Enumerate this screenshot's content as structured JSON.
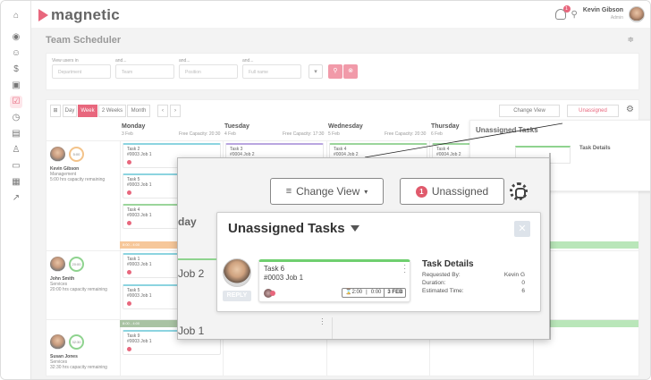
{
  "app": {
    "logo_text": "magnetic",
    "brand_color": "#e8677d"
  },
  "user": {
    "name": "Kevin Gibson",
    "role": "Admin",
    "notifications": "1"
  },
  "rail_icons": [
    "home-icon",
    "location-icon",
    "users-icon",
    "dollar-icon",
    "briefcase-icon",
    "scheduler-icon",
    "clock-icon",
    "book-icon",
    "user-icon",
    "folder-icon",
    "calendar-icon",
    "chart-icon"
  ],
  "page": {
    "title": "Team Scheduler",
    "collapse": "≑"
  },
  "filters": {
    "view_users_in": "View users in",
    "and": "and...",
    "department_placeholder": "Department",
    "team_placeholder": "Team",
    "position_placeholder": "Position",
    "fullname_placeholder": "Full name"
  },
  "toolbar": {
    "grid": "⊞",
    "day": "Day",
    "week": "Week",
    "two_weeks": "2 Weeks",
    "month": "Month",
    "prev": "‹",
    "next": "›",
    "change_view": "Change View",
    "unassigned": "Unassigned",
    "unassigned_count": "1"
  },
  "days": [
    {
      "name": "Monday",
      "date": "3 Feb",
      "capacity": "Free Capacity: 20:30"
    },
    {
      "name": "Tuesday",
      "date": "4 Feb",
      "capacity": "Free Capacity: 17:30"
    },
    {
      "name": "Wednesday",
      "date": "5 Feb",
      "capacity": "Free Capacity: 20:30"
    },
    {
      "name": "Thursday",
      "date": "6 Feb",
      "capacity": ""
    }
  ],
  "people": [
    {
      "name": "Kevin Gibson",
      "dept": "Management",
      "capacity": "5:00 hrs capacity remaining",
      "ring": "5:00"
    },
    {
      "name": "John Smith",
      "dept": "Services",
      "capacity": "20:00 hrs capacity remaining",
      "ring": "20:00"
    },
    {
      "name": "Susan Jones",
      "dept": "Services",
      "capacity": "32:30 hrs capacity remaining",
      "ring": "32:30"
    }
  ],
  "tasks_small": [
    {
      "title": "Task 2",
      "job": "#0003 Job 1"
    },
    {
      "title": "Task 5",
      "job": "#0003 Job 1"
    },
    {
      "title": "Task 4",
      "job": "#0003 Job 1"
    },
    {
      "title": "Task 3",
      "job": "#0004 Job 2"
    },
    {
      "title": "Task 4",
      "job": "#0004 Job 2"
    },
    {
      "title": "Task 4",
      "job": "#0004 Job 2"
    },
    {
      "title": "Task 1",
      "job": "#0003 Job 1"
    },
    {
      "title": "Task 5",
      "job": "#0003 Job 1"
    },
    {
      "title": "Task 9",
      "job": "#0003 Job 1"
    }
  ],
  "bars": [
    {
      "label": "8:00 - 4:00"
    },
    {
      "label": "8:00 - 4:00"
    }
  ],
  "zoom": {
    "partial_day": "day",
    "partial_job2": "Job 2",
    "partial_job1": "Job 1",
    "panel_title": "Unassigned Tasks",
    "close": "✕",
    "reply": "REPLY",
    "task_title": "Task 6",
    "task_job": "#0003 Job 1",
    "hours": "⌛2:00",
    "logged": "0:00",
    "due": "3 FEB",
    "details_title": "Task Details",
    "requested_by_label": "Requested By:",
    "requested_by": "Kevin G",
    "duration_label": "Duration:",
    "duration": "0",
    "estimated_label": "Estimated Time:",
    "estimated": "6"
  }
}
